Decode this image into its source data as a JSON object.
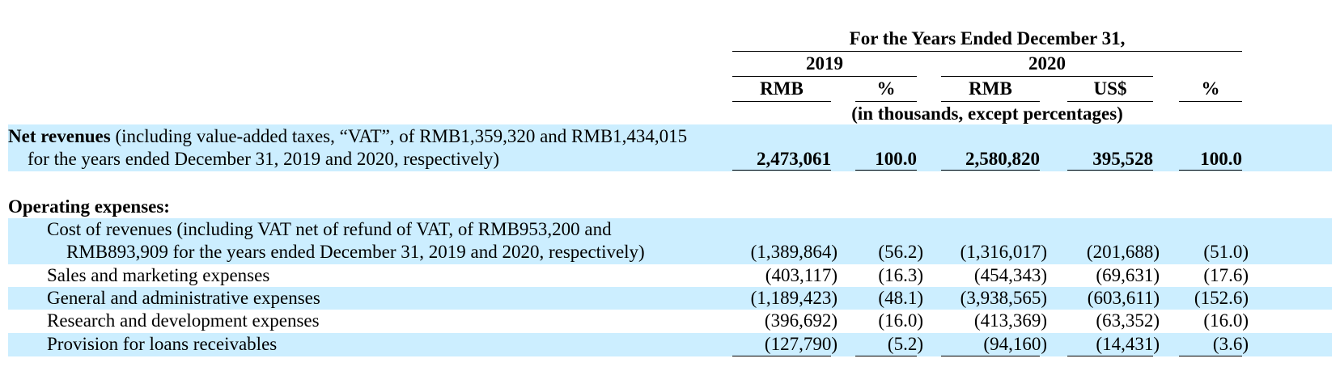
{
  "header": {
    "period_label": "For the Years Ended December 31,",
    "year_2019": "2019",
    "year_2020": "2020",
    "col_labels": [
      "RMB",
      "%",
      "RMB",
      "US$",
      "%"
    ],
    "units_note": "(in thousands, except percentages)"
  },
  "net_revenues": {
    "label_bold": "Net revenues",
    "label_rest": "(including value-added taxes, “VAT”, of RMB1,359,320 and RMB1,434,015",
    "label_line2": "for the years ended December 31, 2019 and 2020, respectively)",
    "values": [
      "2,473,061",
      "100.0",
      "2,580,820",
      "395,528",
      "100.0"
    ]
  },
  "operating_expenses": {
    "heading": "Operating expenses:",
    "rows": [
      {
        "label_line1": "Cost of revenues (including VAT net of refund of VAT, of RMB953,200 and",
        "label_line2": "RMB893,909 for the years ended December 31, 2019 and 2020, respectively)",
        "values": [
          "(1,389,864)",
          "(56.2)",
          "(1,316,017)",
          "(201,688)",
          "(51.0)"
        ]
      },
      {
        "label": "Sales and marketing expenses",
        "values": [
          "(403,117)",
          "(16.3)",
          "(454,343)",
          "(69,631)",
          "(17.6)"
        ]
      },
      {
        "label": "General and administrative expenses",
        "values": [
          "(1,189,423)",
          "(48.1)",
          "(3,938,565)",
          "(603,611)",
          "(152.6)"
        ]
      },
      {
        "label": "Research and development expenses",
        "values": [
          "(396,692)",
          "(16.0)",
          "(413,369)",
          "(63,352)",
          "(16.0)"
        ]
      },
      {
        "label": "Provision for loans receivables",
        "values": [
          "(127,790)",
          "(5.2)",
          "(94,160)",
          "(14,431)",
          "(3.6)"
        ]
      }
    ]
  },
  "colors": {
    "band": "#cceeff",
    "text": "#000000",
    "rule": "#000000"
  }
}
